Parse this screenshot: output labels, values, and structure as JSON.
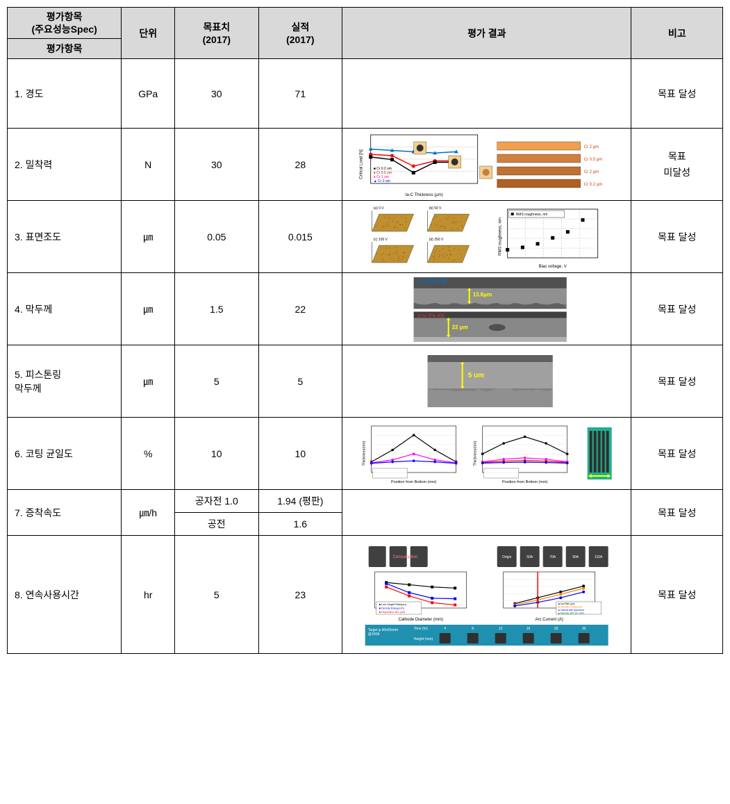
{
  "headers": {
    "item_spec": "평가항목\n(주요성능Spec)",
    "item": "평가항목",
    "unit": "단위",
    "target": "목표치\n(2017)",
    "actual": "실적\n(2017)",
    "result": "평가 결과",
    "note": "비고"
  },
  "rows": [
    {
      "item": "1. 경도",
      "unit": "GPa",
      "target": "30",
      "actual": "71",
      "note": "목표 달성",
      "result_type": "blank"
    },
    {
      "item": "2. 밀착력",
      "unit": "N",
      "target": "30",
      "actual": "28",
      "note": "목표\n미달성",
      "result_type": "line_chart_samples",
      "chart": {
        "bg": "#ffffff",
        "series": [
          {
            "color": "#0070c0",
            "marker": "triangle",
            "points": [
              [
                0,
                28
              ],
              [
                1,
                27
              ],
              [
                2,
                26
              ],
              [
                3,
                25
              ],
              [
                4,
                26
              ]
            ]
          },
          {
            "color": "#ff0000",
            "marker": "circle",
            "points": [
              [
                0,
                24
              ],
              [
                1,
                23
              ],
              [
                2,
                15
              ],
              [
                3,
                19
              ],
              [
                4,
                19
              ]
            ]
          },
          {
            "color": "#000000",
            "marker": "square",
            "points": [
              [
                0,
                22
              ],
              [
                1,
                20
              ],
              [
                2,
                10
              ],
              [
                3,
                18
              ],
              [
                4,
                18
              ]
            ]
          }
        ],
        "xlabel": "ta-C Thickness (μm)",
        "ylabel": "Critical Load [N]",
        "xlim": [
          0,
          5
        ],
        "ylim": [
          5,
          32
        ],
        "insets": [
          {
            "color": "#f0a050",
            "label": "Cr 2 μm"
          },
          {
            "color": "#d08040",
            "label": "Cr 0.5 μm"
          },
          {
            "color": "#c07030",
            "label": "Cr 2 μm"
          },
          {
            "color": "#b06020",
            "label": "Cr 0.2 μm"
          }
        ]
      }
    },
    {
      "item": "3. 표면조도",
      "unit": "㎛",
      "target": "0.05",
      "actual": "0.015",
      "note": "목표 달성",
      "result_type": "afm_scatter",
      "afm": {
        "thumb_color": "#c09030",
        "labels": [
          "(a) 0 V",
          "(b) 50 V",
          "(c) 150 V",
          "(d) 250 V"
        ],
        "scatter": {
          "xlabel": "Bias voltage, V",
          "ylabel": "RMS roughness, nm",
          "xlim": [
            0,
            300
          ],
          "ylim": [
            0,
            35
          ],
          "points": [
            [
              0,
              5
            ],
            [
              50,
              7
            ],
            [
              100,
              10
            ],
            [
              150,
              15
            ],
            [
              200,
              20
            ],
            [
              250,
              30
            ]
          ]
        }
      }
    },
    {
      "item": "4. 막두께",
      "unit": "㎛",
      "target": "1.5",
      "actual": "22",
      "note": "목표 달성",
      "result_type": "sem_cross",
      "sem": {
        "bg": "#707070",
        "top_label": "7 hr 연속 코팅",
        "top_thickness": "13.6μm",
        "bottom_thickness": "22 μm",
        "arrow_color": "#ffff00",
        "label_color": "#ffff00",
        "top_label_color": "#0070c0"
      }
    },
    {
      "item": "5. 피스톤링\n    막두께",
      "unit": "㎛",
      "target": "5",
      "actual": "5",
      "note": "목표 달성",
      "result_type": "sem_single",
      "sem_single": {
        "bg": "#808080",
        "film_bg": "#a0a0a0",
        "substrate_bg": "#909090",
        "label": "5 um",
        "arrow_color": "#ffff00",
        "label_color": "#ffff00"
      }
    },
    {
      "item": "6. 코팅 균일도",
      "unit": "%",
      "target": "10",
      "actual": "10",
      "note": "목표 달성",
      "result_type": "dual_line",
      "dual": {
        "xlabel": "Position from Bottom (mm)",
        "left": {
          "series": [
            {
              "color": "#000000",
              "points": [
                [
                  0,
                  80
                ],
                [
                  50,
                  200
                ],
                [
                  100,
                  350
                ],
                [
                  150,
                  200
                ],
                [
                  200,
                  80
                ]
              ]
            },
            {
              "color": "#ff00ff",
              "points": [
                [
                  0,
                  70
                ],
                [
                  50,
                  100
                ],
                [
                  100,
                  160
                ],
                [
                  150,
                  100
                ],
                [
                  200,
                  70
                ]
              ]
            },
            {
              "color": "#0000ff",
              "points": [
                [
                  0,
                  65
                ],
                [
                  50,
                  80
                ],
                [
                  100,
                  90
                ],
                [
                  150,
                  80
                ],
                [
                  200,
                  65
                ]
              ]
            }
          ],
          "ylim": [
            0,
            400
          ]
        },
        "right": {
          "series": [
            {
              "color": "#000000",
              "points": [
                [
                  0,
                  120
                ],
                [
                  50,
                  200
                ],
                [
                  100,
                  250
                ],
                [
                  150,
                  200
                ],
                [
                  200,
                  120
                ]
              ]
            },
            {
              "color": "#ff00ff",
              "points": [
                [
                  0,
                  60
                ],
                [
                  50,
                  80
                ],
                [
                  100,
                  90
                ],
                [
                  150,
                  80
                ],
                [
                  200,
                  60
                ]
              ]
            },
            {
              "color": "#ff0000",
              "points": [
                [
                  0,
                  55
                ],
                [
                  50,
                  65
                ],
                [
                  100,
                  70
                ],
                [
                  150,
                  65
                ],
                [
                  200,
                  55
                ]
              ]
            },
            {
              "color": "#0000ff",
              "points": [
                [
                  0,
                  50
                ],
                [
                  50,
                  55
                ],
                [
                  100,
                  58
                ],
                [
                  150,
                  55
                ],
                [
                  200,
                  50
                ]
              ]
            }
          ],
          "ylim": [
            0,
            300
          ]
        },
        "samples_bg": "#20b090"
      }
    },
    {
      "item": "7. 증착속도",
      "unit": "㎛/h",
      "sub": [
        {
          "target": "공자전 1.0",
          "actual": "1.94 (평판)"
        },
        {
          "target": "공전",
          "actual": "1.6"
        }
      ],
      "note": "목표 달성",
      "result_type": "blank"
    },
    {
      "item": "8. 연속사용시간",
      "unit": "hr",
      "target": "5",
      "actual": "23",
      "note": "목표 달성",
      "result_type": "consumption",
      "cons": {
        "img_bg": "#404040",
        "left": {
          "xlabel": "Cathode Diameter (mm)",
          "series": [
            {
              "color": "#000000",
              "points": [
                [
                  30,
                  240
                ],
                [
                  40,
                  220
                ],
                [
                  50,
                  200
                ],
                [
                  60,
                  190
                ]
              ]
            },
            {
              "color": "#0000ff",
              "points": [
                [
                  30,
                  230
                ],
                [
                  40,
                  150
                ],
                [
                  50,
                  100
                ],
                [
                  60,
                  95
                ]
              ]
            },
            {
              "color": "#ff0000",
              "points": [
                [
                  30,
                  200
                ],
                [
                  40,
                  120
                ],
                [
                  50,
                  60
                ],
                [
                  60,
                  40
                ]
              ]
            }
          ],
          "ylim": [
            0,
            260
          ]
        },
        "right": {
          "xlabel": "Arc Current (A)",
          "series": [
            {
              "color": "#000000",
              "points": [
                [
                  50,
                  50
                ],
                [
                  70,
                  100
                ],
                [
                  90,
                  150
                ],
                [
                  110,
                  200
                ]
              ]
            },
            {
              "color": "#ff8000",
              "points": [
                [
                  50,
                  40
                ],
                [
                  70,
                  80
                ],
                [
                  90,
                  130
                ],
                [
                  110,
                  180
                ]
              ]
            },
            {
              "color": "#0000ff",
              "points": [
                [
                  50,
                  30
                ],
                [
                  70,
                  60
                ],
                [
                  90,
                  100
                ],
                [
                  110,
                  150
                ]
              ]
            }
          ],
          "ylim": [
            0,
            250
          ],
          "vline_x": 70,
          "vline_color": "#ff0000"
        },
        "time_bar": {
          "bg": "#2090b0",
          "label": "Target φ 50x55mm t\n@100A",
          "times": [
            "4",
            "8",
            "12",
            "16",
            "20",
            "30"
          ],
          "rows": [
            "Time (hr)",
            "Height (mm)"
          ]
        }
      }
    }
  ],
  "colors": {
    "header_bg": "#d9d9d9",
    "border": "#000000",
    "text": "#000000"
  }
}
